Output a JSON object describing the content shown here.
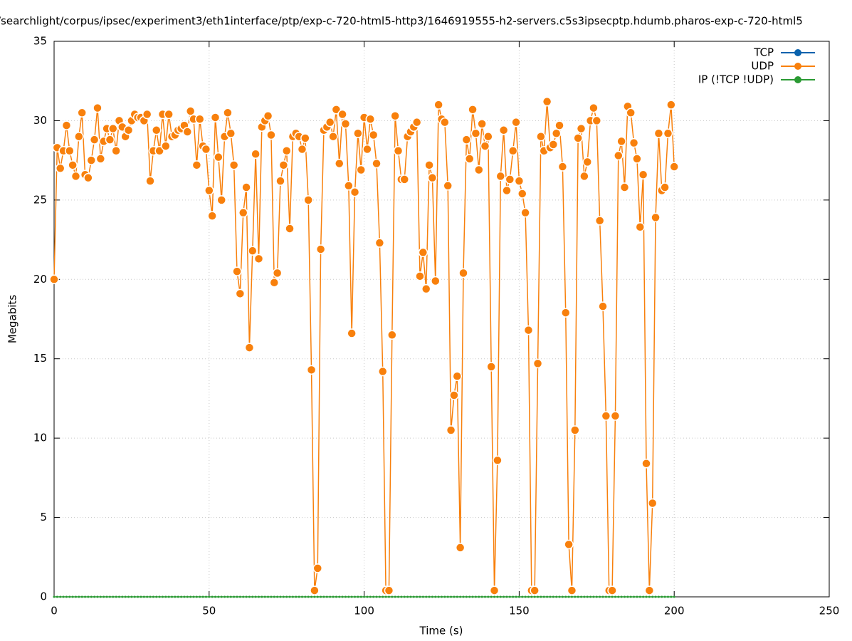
{
  "chart_data": {
    "type": "line",
    "title": "/searchlight/corpus/ipsec/experiment3/eth1interface/ptp/exp-c-720-html5-http3/1646919555-h2-servers.c5s3ipsecptp.hdumb.pharos-exp-c-720-html5",
    "x_label": "Time (s)",
    "y_label": "Megabits",
    "xlim": [
      0,
      250
    ],
    "xticks": [
      0,
      50,
      100,
      150,
      200,
      250
    ],
    "ylim": [
      0,
      35
    ],
    "yticks": [
      0,
      5,
      10,
      15,
      20,
      25,
      30,
      35
    ],
    "grid": true,
    "legend": "top-right",
    "x": [
      0,
      1,
      2,
      3,
      4,
      5,
      6,
      7,
      8,
      9,
      10,
      11,
      12,
      13,
      14,
      15,
      16,
      17,
      18,
      19,
      20,
      21,
      22,
      23,
      24,
      25,
      26,
      27,
      28,
      29,
      30,
      31,
      32,
      33,
      34,
      35,
      36,
      37,
      38,
      39,
      40,
      41,
      42,
      43,
      44,
      45,
      46,
      47,
      48,
      49,
      50,
      51,
      52,
      53,
      54,
      55,
      56,
      57,
      58,
      59,
      60,
      61,
      62,
      63,
      64,
      65,
      66,
      67,
      68,
      69,
      70,
      71,
      72,
      73,
      74,
      75,
      76,
      77,
      78,
      79,
      80,
      81,
      82,
      83,
      84,
      85,
      86,
      87,
      88,
      89,
      90,
      91,
      92,
      93,
      94,
      95,
      96,
      97,
      98,
      99,
      100,
      101,
      102,
      103,
      104,
      105,
      106,
      107,
      108,
      109,
      110,
      111,
      112,
      113,
      114,
      115,
      116,
      117,
      118,
      119,
      120,
      121,
      122,
      123,
      124,
      125,
      126,
      127,
      128,
      129,
      130,
      131,
      132,
      133,
      134,
      135,
      136,
      137,
      138,
      139,
      140,
      141,
      142,
      143,
      144,
      145,
      146,
      147,
      148,
      149,
      150,
      151,
      152,
      153,
      154,
      155,
      156,
      157,
      158,
      159,
      160,
      161,
      162,
      163,
      164,
      165,
      166,
      167,
      168,
      169,
      170,
      171,
      172,
      173,
      174,
      175,
      176,
      177,
      178,
      179,
      180,
      181,
      182,
      183,
      184,
      185,
      186,
      187,
      188,
      189,
      190,
      191,
      192,
      193,
      194,
      195,
      196,
      197,
      198,
      199,
      200
    ],
    "series": [
      {
        "name": "TCP",
        "color": "#0a62ad",
        "values": [
          null,
          null,
          null,
          null,
          null,
          null,
          null,
          null,
          null,
          null,
          null,
          null,
          null,
          null,
          null,
          null,
          null,
          null,
          null,
          null,
          null,
          null,
          null,
          null,
          null,
          null,
          null,
          null,
          null,
          null,
          null,
          null,
          null,
          null,
          null,
          null,
          null,
          null,
          null,
          null,
          null,
          null,
          null,
          null,
          null,
          null,
          null,
          null,
          null,
          null,
          null,
          null,
          null,
          null,
          null,
          null,
          null,
          null,
          null,
          null,
          null,
          null,
          null,
          null,
          null,
          null,
          null,
          null,
          null,
          null,
          null,
          null,
          null,
          null,
          null,
          null,
          null,
          null,
          null,
          null,
          null,
          null,
          null,
          null,
          null,
          null,
          null,
          null,
          null,
          null,
          null,
          null,
          null,
          null,
          null,
          null,
          null,
          null,
          null,
          null,
          null,
          null,
          null,
          null,
          null,
          null,
          null,
          null,
          null,
          null,
          null,
          null,
          null,
          null,
          null,
          null,
          null,
          null,
          null,
          null,
          null,
          null,
          null,
          null,
          null,
          null,
          null,
          null,
          null,
          null,
          null,
          null,
          null,
          null,
          null,
          null,
          null,
          null,
          null,
          null,
          null,
          null,
          null,
          null,
          null,
          null,
          null,
          null,
          null,
          null,
          null,
          null,
          null,
          null,
          null,
          null,
          null,
          null,
          null,
          null,
          null,
          null,
          null,
          null,
          null,
          null,
          null,
          null,
          null,
          null,
          null,
          null,
          null,
          null,
          null,
          null,
          null,
          null,
          null,
          null,
          null,
          null,
          null,
          null,
          null,
          null,
          null,
          null,
          null,
          null,
          null,
          null,
          null,
          null,
          null,
          null,
          null,
          null,
          null,
          null,
          null
        ]
      },
      {
        "name": "UDP",
        "color": "#f8800c",
        "values": [
          20.0,
          28.3,
          27.0,
          28.1,
          29.7,
          28.1,
          27.2,
          26.5,
          29.0,
          30.5,
          26.6,
          26.4,
          27.5,
          28.8,
          30.8,
          27.6,
          28.7,
          29.5,
          28.8,
          29.5,
          28.1,
          30.0,
          29.6,
          29.0,
          29.4,
          30.0,
          30.4,
          30.2,
          30.2,
          30.0,
          30.4,
          26.2,
          28.1,
          29.4,
          28.1,
          30.4,
          28.4,
          30.4,
          29.0,
          29.1,
          29.4,
          29.5,
          29.7,
          29.3,
          30.6,
          30.1,
          27.2,
          30.1,
          28.4,
          28.2,
          25.6,
          24.0,
          30.2,
          27.7,
          25.0,
          29.0,
          30.5,
          29.2,
          27.2,
          20.5,
          19.1,
          24.2,
          25.8,
          15.7,
          21.8,
          27.9,
          21.3,
          29.6,
          30.0,
          30.3,
          29.1,
          19.8,
          20.4,
          26.2,
          27.2,
          28.1,
          23.2,
          29.0,
          29.2,
          29.0,
          28.2,
          28.9,
          25.0,
          14.3,
          0.4,
          1.8,
          21.9,
          29.4,
          29.6,
          29.9,
          29.0,
          30.7,
          27.3,
          30.4,
          29.8,
          25.9,
          16.6,
          25.5,
          29.2,
          26.9,
          30.2,
          28.2,
          30.1,
          29.1,
          27.3,
          22.3,
          14.2,
          0.4,
          0.4,
          16.5,
          30.3,
          28.1,
          26.3,
          26.3,
          29.0,
          29.3,
          29.6,
          29.9,
          20.2,
          21.7,
          19.4,
          27.2,
          26.4,
          19.9,
          31.0,
          30.1,
          29.9,
          25.9,
          10.5,
          12.7,
          13.9,
          3.1,
          20.4,
          28.8,
          27.6,
          30.7,
          29.2,
          26.9,
          29.8,
          28.4,
          29.0,
          14.5,
          0.4,
          8.6,
          26.5,
          29.4,
          25.6,
          26.3,
          28.1,
          29.9,
          26.2,
          25.4,
          24.2,
          16.8,
          0.4,
          0.4,
          14.7,
          29.0,
          28.1,
          31.2,
          28.3,
          28.5,
          29.2,
          29.7,
          27.1,
          17.9,
          3.3,
          0.4,
          10.5,
          28.9,
          29.5,
          26.5,
          27.4,
          30.0,
          30.8,
          30.0,
          23.7,
          18.3,
          11.4,
          0.4,
          0.4,
          11.4,
          27.8,
          28.7,
          25.8,
          30.9,
          30.5,
          28.6,
          27.6,
          23.3,
          26.6,
          8.4,
          0.4,
          5.9,
          23.9,
          29.2,
          25.6,
          25.8,
          29.2,
          31.0,
          27.1
        ]
      },
      {
        "name": "IP (!TCP  !UDP)",
        "color": "#2a9a33",
        "values": [
          0,
          0,
          0,
          0,
          0,
          0,
          0,
          0,
          0,
          0,
          0,
          0,
          0,
          0,
          0,
          0,
          0,
          0,
          0,
          0,
          0,
          0,
          0,
          0,
          0,
          0,
          0,
          0,
          0,
          0,
          0,
          0,
          0,
          0,
          0,
          0,
          0,
          0,
          0,
          0,
          0,
          0,
          0,
          0,
          0,
          0,
          0,
          0,
          0,
          0,
          0,
          0,
          0,
          0,
          0,
          0,
          0,
          0,
          0,
          0,
          0,
          0,
          0,
          0,
          0,
          0,
          0,
          0,
          0,
          0,
          0,
          0,
          0,
          0,
          0,
          0,
          0,
          0,
          0,
          0,
          0,
          0,
          0,
          0,
          0,
          0,
          0,
          0,
          0,
          0,
          0,
          0,
          0,
          0,
          0,
          0,
          0,
          0,
          0,
          0,
          0,
          0,
          0,
          0,
          0,
          0,
          0,
          0,
          0,
          0,
          0,
          0,
          0,
          0,
          0,
          0,
          0,
          0,
          0,
          0,
          0,
          0,
          0,
          0,
          0,
          0,
          0,
          0,
          0,
          0,
          0,
          0,
          0,
          0,
          0,
          0,
          0,
          0,
          0,
          0,
          0,
          0,
          0,
          0,
          0,
          0,
          0,
          0,
          0,
          0,
          0,
          0,
          0,
          0,
          0,
          0,
          0,
          0,
          0,
          0,
          0,
          0,
          0,
          0,
          0,
          0,
          0,
          0,
          0,
          0,
          0,
          0,
          0,
          0,
          0,
          0,
          0,
          0,
          0,
          0,
          0,
          0,
          0,
          0,
          0,
          0,
          0,
          0,
          0,
          0,
          0,
          0,
          0,
          0,
          0,
          0,
          0,
          0,
          0,
          0,
          0
        ]
      }
    ]
  }
}
